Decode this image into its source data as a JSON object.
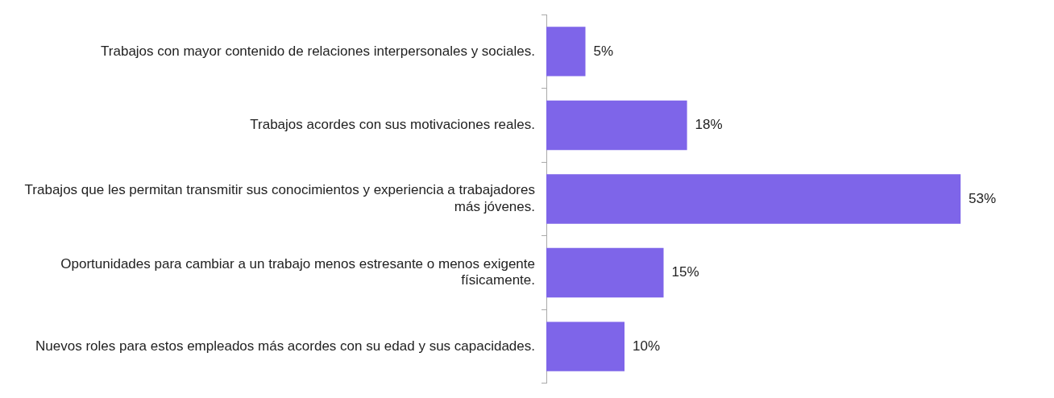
{
  "chart_data": {
    "type": "bar",
    "orientation": "horizontal",
    "categories": [
      "Trabajos con mayor contenido de relaciones interpersonales y sociales.",
      "Trabajos acordes con sus motivaciones reales.",
      "Trabajos que les permitan transmitir sus conocimientos y experiencia a trabajadores más jóvenes.",
      "Oportunidades para cambiar a un trabajo menos estresante o menos exigente físicamente.",
      "Nuevos roles para estos empleados más acordes con su edad y sus capacidades."
    ],
    "values": [
      5,
      18,
      53,
      15,
      10
    ],
    "value_labels": [
      "5%",
      "18%",
      "53%",
      "15%",
      "10%"
    ],
    "color": "#7e65e9",
    "tick_labels": "y"
  }
}
